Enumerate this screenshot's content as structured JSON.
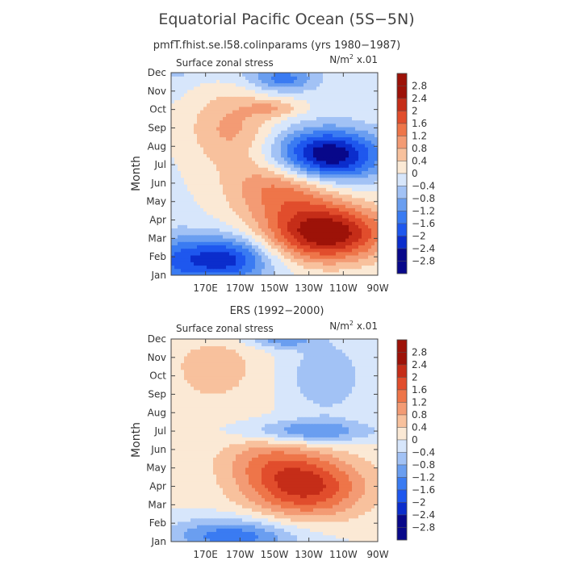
{
  "figure": {
    "title": "Equatorial Pacific Ocean (5S−5N)"
  },
  "colorbar_colors": [
    "#08088a",
    "#0b2dcc",
    "#1e57ee",
    "#3a7bf2",
    "#6a9ef0",
    "#a2c2f5",
    "#d7e6fb",
    "#fbe9d5",
    "#f8c19d",
    "#f39b74",
    "#ee7549",
    "#e14d2c",
    "#c52d18",
    "#9d1208"
  ],
  "chart_data": [
    {
      "type": "heatmap",
      "subtitle": "pmfT.fhist.se.l58.colinparams (yrs 1980−1987)",
      "label_left": "Surface zonal stress",
      "units_prefix": "N/m",
      "units_exp": "2",
      "units_suffix": " x.01",
      "ylabel": "Month",
      "months": [
        "Jan",
        "Feb",
        "Mar",
        "Apr",
        "May",
        "Jun",
        "Jul",
        "Aug",
        "Sep",
        "Oct",
        "Nov",
        "Dec"
      ],
      "lon_ticks": [
        "170E",
        "170W",
        "150W",
        "130W",
        "110W",
        "90W"
      ],
      "lon_tick_values": [
        170,
        190,
        210,
        230,
        250,
        270
      ],
      "xlim": [
        150,
        270
      ],
      "levels": [
        "2.8",
        "2.4",
        "2",
        "1.6",
        "1.2",
        "0.8",
        "0.4",
        "0",
        "−0.4",
        "−0.8",
        "−1.2",
        "−1.6",
        "−2",
        "−2.4",
        "−2.8"
      ],
      "field": {
        "base": -0.1,
        "features": [
          {
            "lon": 240,
            "mon": 2.3,
            "amp": 2.9,
            "slon": 25,
            "smon": 1.1
          },
          {
            "lon": 215,
            "mon": 4.8,
            "amp": 1.5,
            "slon": 22,
            "smon": 1.2
          },
          {
            "lon": 185,
            "mon": 8.0,
            "amp": 1.0,
            "slon": 18,
            "smon": 1.5
          },
          {
            "lon": 210,
            "mon": 9.1,
            "amp": 0.7,
            "slon": 12,
            "smon": 0.35
          },
          {
            "lon": 240,
            "mon": 6.5,
            "amp": -2.9,
            "slon": 22,
            "smon": 1.0
          },
          {
            "lon": 180,
            "mon": 0.9,
            "amp": -2.2,
            "slon": 20,
            "smon": 0.9
          },
          {
            "lon": 215,
            "mon": 10.7,
            "amp": -1.3,
            "slon": 14,
            "smon": 0.5
          },
          {
            "lon": 150,
            "mon": 0.6,
            "amp": -0.8,
            "slon": 12,
            "smon": 1.2
          }
        ]
      }
    },
    {
      "type": "heatmap",
      "subtitle": "ERS (1992−2000)",
      "label_left": "Surface zonal stress",
      "units_prefix": "N/m",
      "units_exp": "2",
      "units_suffix": " x.01",
      "ylabel": "Month",
      "months": [
        "Jan",
        "Feb",
        "Mar",
        "Apr",
        "May",
        "Jun",
        "Jul",
        "Aug",
        "Sep",
        "Oct",
        "Nov",
        "Dec"
      ],
      "lon_ticks": [
        "170E",
        "170W",
        "150W",
        "130W",
        "110W",
        "90W"
      ],
      "lon_tick_values": [
        170,
        190,
        210,
        230,
        250,
        270
      ],
      "xlim": [
        150,
        270
      ],
      "levels": [
        "2.8",
        "2.4",
        "2",
        "1.6",
        "1.2",
        "0.8",
        "0.4",
        "0",
        "−0.4",
        "−0.8",
        "−1.2",
        "−1.6",
        "−2",
        "−2.4",
        "−2.8"
      ],
      "field": {
        "base": 0.05,
        "features": [
          {
            "lon": 228,
            "mon": 3.0,
            "amp": 2.1,
            "slon": 24,
            "smon": 1.2
          },
          {
            "lon": 205,
            "mon": 4.5,
            "amp": 0.8,
            "slon": 20,
            "smon": 1.0
          },
          {
            "lon": 175,
            "mon": 9.5,
            "amp": 0.6,
            "slon": 18,
            "smon": 1.4
          },
          {
            "lon": 230,
            "mon": 6.0,
            "amp": -1.3,
            "slon": 26,
            "smon": 0.45
          },
          {
            "lon": 185,
            "mon": 0.3,
            "amp": -1.6,
            "slon": 26,
            "smon": 0.7
          },
          {
            "lon": 240,
            "mon": 9.0,
            "amp": -0.8,
            "slon": 16,
            "smon": 1.5
          },
          {
            "lon": 215,
            "mon": 11.0,
            "amp": -1.0,
            "slon": 12,
            "smon": 0.35
          }
        ]
      }
    }
  ]
}
